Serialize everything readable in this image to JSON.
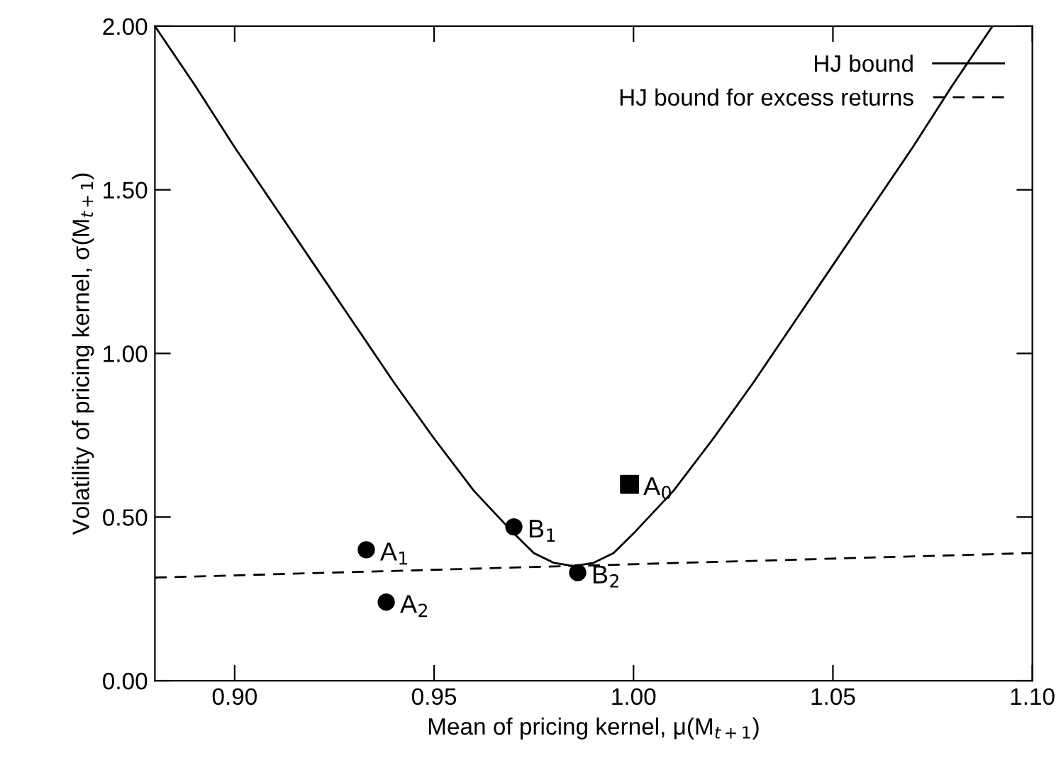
{
  "chart_data": {
    "type": "line",
    "xlabel": "Mean of pricing kernel, μ(M$_{t+1}$)",
    "ylabel": "Volatility of pricing kernel, σ(M$_{t+1}$)",
    "xlim": [
      0.88,
      1.1
    ],
    "ylim": [
      0.0,
      2.0
    ],
    "xticks": [
      {
        "value": 0.9,
        "label": "0.90"
      },
      {
        "value": 0.95,
        "label": "0.95"
      },
      {
        "value": 1.0,
        "label": "1.00"
      },
      {
        "value": 1.05,
        "label": "1.05"
      },
      {
        "value": 1.1,
        "label": "1.10"
      }
    ],
    "yticks": [
      {
        "value": 0.0,
        "label": "0.00"
      },
      {
        "value": 0.5,
        "label": "0.50"
      },
      {
        "value": 1.0,
        "label": "1.00"
      },
      {
        "value": 1.5,
        "label": "1.50"
      },
      {
        "value": 2.0,
        "label": "2.00"
      }
    ],
    "grid": false,
    "legend": "top right",
    "series": [
      {
        "name": "HJ bound",
        "line_style": "solid",
        "color": "#000000",
        "x": [
          0.88,
          0.89,
          0.9,
          0.91,
          0.92,
          0.93,
          0.94,
          0.95,
          0.96,
          0.97,
          0.975,
          0.98,
          0.985,
          0.99,
          0.995,
          1.0,
          1.01,
          1.02,
          1.03,
          1.04,
          1.05,
          1.06,
          1.07,
          1.08,
          1.09
        ],
        "values": [
          2.0,
          1.82,
          1.63,
          1.45,
          1.27,
          1.09,
          0.91,
          0.74,
          0.58,
          0.45,
          0.39,
          0.36,
          0.35,
          0.36,
          0.39,
          0.45,
          0.58,
          0.74,
          0.91,
          1.09,
          1.27,
          1.45,
          1.63,
          1.82,
          2.0
        ]
      },
      {
        "name": "HJ bound for excess returns",
        "line_style": "dashed",
        "color": "#000000",
        "x": [
          0.88,
          1.1
        ],
        "values": [
          0.315,
          0.39
        ]
      },
      {
        "type": "scatter",
        "marker": "circle",
        "color": "#000000",
        "x": [
          0.933,
          0.938,
          0.97,
          0.986
        ],
        "values": [
          0.4,
          0.24,
          0.47,
          0.33
        ]
      },
      {
        "type": "scatter",
        "marker": "square",
        "color": "#000000",
        "x": [
          0.999
        ],
        "values": [
          0.6
        ]
      }
    ],
    "annotations": [
      {
        "text": "A$_{1}$",
        "x": 0.933,
        "y": 0.4
      },
      {
        "text": "A$_{2}$",
        "x": 0.938,
        "y": 0.24
      },
      {
        "text": "B$_{1}$",
        "x": 0.97,
        "y": 0.47
      },
      {
        "text": "B$_{2}$",
        "x": 0.986,
        "y": 0.33
      },
      {
        "text": "A$_{0}$",
        "x": 0.999,
        "y": 0.6
      }
    ]
  }
}
